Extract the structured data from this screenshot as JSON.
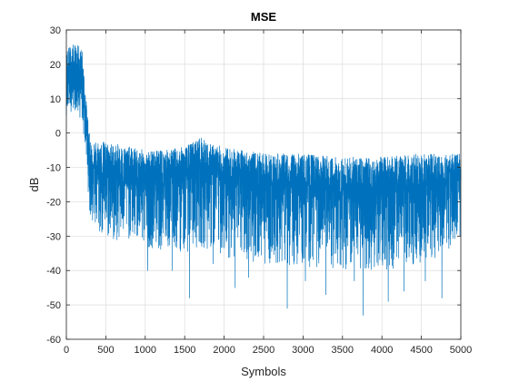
{
  "chart_data": {
    "type": "line",
    "title": "MSE",
    "xlabel": "Symbols",
    "ylabel": "dB",
    "xlim": [
      0,
      5000
    ],
    "ylim": [
      -60,
      30
    ],
    "xticks": [
      0,
      500,
      1000,
      1500,
      2000,
      2500,
      3000,
      3500,
      4000,
      4500,
      5000
    ],
    "yticks": [
      -60,
      -50,
      -40,
      -30,
      -20,
      -10,
      0,
      10,
      20,
      30
    ],
    "grid": true,
    "line_color": "#0072BD",
    "num_points": 5000,
    "series": [
      {
        "color": "#0072BD",
        "envelope": {
          "x": [
            0,
            100,
            200,
            250,
            300,
            400,
            600,
            800,
            1000,
            1200,
            1500,
            1700,
            1800,
            2000,
            2500,
            3000,
            3500,
            4000,
            4500,
            5000
          ],
          "mean": [
            15,
            17,
            14,
            5,
            -8,
            -11,
            -13,
            -13,
            -14,
            -13,
            -12,
            -10,
            -11,
            -13,
            -15,
            -16,
            -17,
            -17,
            -16,
            -15
          ],
          "upper": [
            25,
            26,
            25,
            10,
            -2,
            -2,
            -3,
            -4,
            -5,
            -5,
            -4,
            -1,
            -3,
            -4,
            -6,
            -6,
            -7,
            -7,
            -6,
            -6
          ],
          "lower": [
            5,
            7,
            3,
            -8,
            -25,
            -30,
            -32,
            -31,
            -33,
            -34,
            -35,
            -33,
            -34,
            -36,
            -38,
            -39,
            -40,
            -40,
            -38,
            -36
          ]
        },
        "spikes": [
          {
            "x": 1030,
            "y": -40
          },
          {
            "x": 1340,
            "y": -40
          },
          {
            "x": 1560,
            "y": -48
          },
          {
            "x": 1860,
            "y": -38
          },
          {
            "x": 2140,
            "y": -45
          },
          {
            "x": 2310,
            "y": -42
          },
          {
            "x": 2800,
            "y": -51
          },
          {
            "x": 3030,
            "y": -43
          },
          {
            "x": 3290,
            "y": -47
          },
          {
            "x": 3650,
            "y": -43
          },
          {
            "x": 3760,
            "y": -53
          },
          {
            "x": 4080,
            "y": -49
          },
          {
            "x": 4280,
            "y": -46
          },
          {
            "x": 4550,
            "y": -43
          },
          {
            "x": 4760,
            "y": -48
          }
        ]
      }
    ]
  }
}
